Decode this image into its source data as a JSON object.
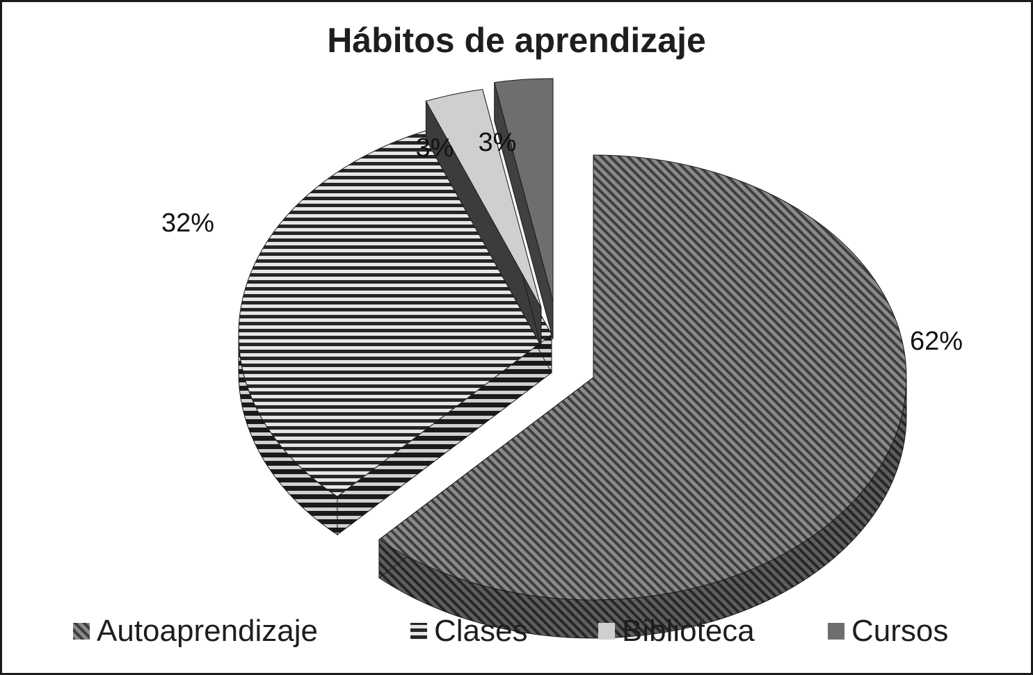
{
  "chart_data": {
    "type": "pie",
    "title": "Hábitos de aprendizaje",
    "slices": [
      {
        "label": "Autoaprendizaje",
        "value": 62,
        "value_label": "62%",
        "pattern": "diagonal-stripes",
        "color": "#5c5c5c"
      },
      {
        "label": "Clases",
        "value": 32,
        "value_label": "32%",
        "pattern": "horizontal-stripes",
        "color": "#2e2e2e"
      },
      {
        "label": "Biblioteca",
        "value": 3,
        "value_label": "3%",
        "pattern": "solid",
        "color": "#cfcfcf"
      },
      {
        "label": "Cursos",
        "value": 3,
        "value_label": "3%",
        "pattern": "solid",
        "color": "#6e6e6e"
      }
    ],
    "legend_position": "bottom",
    "style": "3d-exploded"
  }
}
